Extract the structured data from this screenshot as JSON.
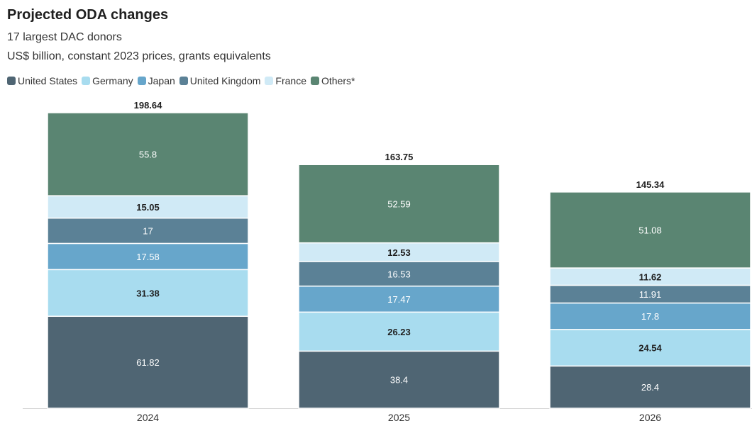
{
  "header": {
    "title": "Projected ODA changes",
    "subtitle": "17 largest DAC donors",
    "subtitle2": "US$ billion, constant 2023 prices, grants equivalents"
  },
  "legend": [
    {
      "label": "United States",
      "color": "#4f6573"
    },
    {
      "label": "Germany",
      "color": "#a8dcef"
    },
    {
      "label": "Japan",
      "color": "#67a6cb"
    },
    {
      "label": "United Kingdom",
      "color": "#5b8196"
    },
    {
      "label": "France",
      "color": "#d0eaf6"
    },
    {
      "label": "Others*",
      "color": "#5a8572"
    }
  ],
  "chart_data": {
    "type": "bar",
    "stacked": true,
    "categories": [
      "2024",
      "2025",
      "2026"
    ],
    "totals": [
      "198.64",
      "163.75",
      "145.34"
    ],
    "ylim": [
      0,
      198.64
    ],
    "series": [
      {
        "name": "United States",
        "color": "#4f6573",
        "label_color": "#ffffff",
        "values": [
          61.82,
          38.4,
          28.4
        ]
      },
      {
        "name": "Germany",
        "color": "#a8dcef",
        "label_color": "#1f1f1f",
        "values": [
          31.38,
          26.23,
          24.54
        ]
      },
      {
        "name": "Japan",
        "color": "#67a6cb",
        "label_color": "#ffffff",
        "values": [
          17.58,
          17.47,
          17.8
        ]
      },
      {
        "name": "United Kingdom",
        "color": "#5b8196",
        "label_color": "#ffffff",
        "values": [
          17,
          16.53,
          11.91
        ]
      },
      {
        "name": "France",
        "color": "#d0eaf6",
        "label_color": "#1f1f1f",
        "values": [
          15.05,
          12.53,
          11.62
        ]
      },
      {
        "name": "Others*",
        "color": "#5a8572",
        "label_color": "#ffffff",
        "values": [
          55.8,
          52.59,
          51.08
        ]
      }
    ]
  }
}
